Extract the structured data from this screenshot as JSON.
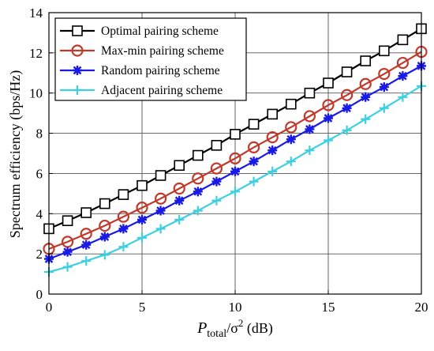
{
  "chart_data": {
    "type": "line",
    "xlabel": {
      "main": "P",
      "sub": "total",
      "rest": "/σ",
      "sup": "2",
      "unit": " (dB)"
    },
    "ylabel": "Spectrum efficiency (bps/Hz)",
    "xlim": [
      0,
      20
    ],
    "ylim": [
      0,
      14
    ],
    "xticks": [
      0,
      5,
      10,
      15,
      20
    ],
    "yticks": [
      0,
      2,
      4,
      6,
      8,
      10,
      12,
      14
    ],
    "grid": true,
    "legend_position": "top-left",
    "x": [
      0,
      1,
      2,
      3,
      4,
      5,
      6,
      7,
      8,
      9,
      10,
      11,
      12,
      13,
      14,
      15,
      16,
      17,
      18,
      19,
      20
    ],
    "series": [
      {
        "name": "Optimal pairing scheme",
        "color": "#000000",
        "marker": "square",
        "values": [
          3.25,
          3.65,
          4.05,
          4.5,
          4.95,
          5.4,
          5.9,
          6.4,
          6.9,
          7.4,
          7.95,
          8.45,
          8.95,
          9.45,
          10.0,
          10.5,
          11.05,
          11.6,
          12.1,
          12.65,
          13.2
        ]
      },
      {
        "name": "Max-min pairing scheme",
        "color": "#c0392b",
        "marker": "circle",
        "values": [
          2.25,
          2.6,
          3.0,
          3.4,
          3.85,
          4.3,
          4.75,
          5.25,
          5.75,
          6.25,
          6.75,
          7.3,
          7.8,
          8.3,
          8.85,
          9.4,
          9.9,
          10.45,
          10.95,
          11.5,
          12.05
        ]
      },
      {
        "name": "Random pairing scheme",
        "color": "#1a1ae6",
        "marker": "star",
        "values": [
          1.75,
          2.1,
          2.45,
          2.85,
          3.25,
          3.7,
          4.15,
          4.65,
          5.1,
          5.6,
          6.1,
          6.6,
          7.15,
          7.7,
          8.2,
          8.75,
          9.25,
          9.8,
          10.3,
          10.85,
          11.35
        ]
      },
      {
        "name": "Adjacent pairing scheme",
        "color": "#3fd0e0",
        "marker": "plus",
        "values": [
          1.1,
          1.35,
          1.65,
          1.95,
          2.35,
          2.8,
          3.25,
          3.7,
          4.15,
          4.65,
          5.1,
          5.6,
          6.1,
          6.6,
          7.15,
          7.65,
          8.15,
          8.7,
          9.25,
          9.8,
          10.35
        ]
      }
    ]
  }
}
